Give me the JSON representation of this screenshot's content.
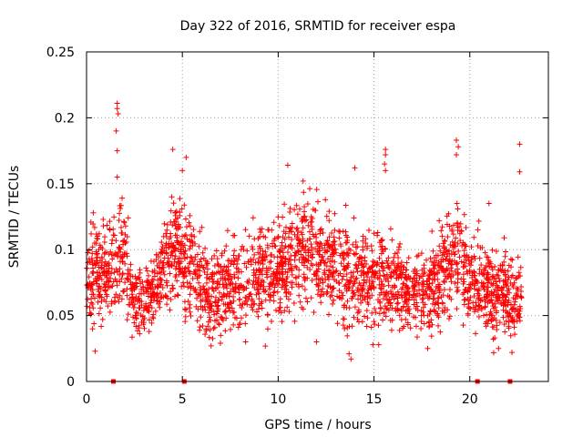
{
  "chart_data": {
    "type": "scatter",
    "title": "Day 322 of 2016, SRMTID for receiver espa",
    "xlabel": "GPS time / hours",
    "ylabel": "SRMTID / TECUs",
    "xlim": [
      0,
      24.1
    ],
    "ylim": [
      0,
      0.25
    ],
    "x_ticks": [
      0,
      5,
      10,
      15,
      20
    ],
    "x_tick_labels": [
      "0",
      "5",
      "10",
      "15",
      "20"
    ],
    "y_ticks": [
      0,
      0.05,
      0.1,
      0.15,
      0.2,
      0.25
    ],
    "y_tick_labels": [
      "0",
      "0.05",
      "0.1",
      "0.15",
      "0.2",
      "0.25"
    ],
    "grid": true,
    "marker": "+",
    "color": "#ff0000",
    "outliers": [
      {
        "x": 1.6,
        "y": 0.211
      },
      {
        "x": 1.6,
        "y": 0.207
      },
      {
        "x": 1.65,
        "y": 0.203
      },
      {
        "x": 1.55,
        "y": 0.19
      },
      {
        "x": 1.6,
        "y": 0.175
      },
      {
        "x": 1.6,
        "y": 0.155
      },
      {
        "x": 4.5,
        "y": 0.176
      },
      {
        "x": 5.2,
        "y": 0.17
      },
      {
        "x": 5.0,
        "y": 0.16
      },
      {
        "x": 4.45,
        "y": 0.14
      },
      {
        "x": 10.5,
        "y": 0.164
      },
      {
        "x": 11.3,
        "y": 0.152
      },
      {
        "x": 14.0,
        "y": 0.162
      },
      {
        "x": 15.6,
        "y": 0.176
      },
      {
        "x": 15.6,
        "y": 0.172
      },
      {
        "x": 15.55,
        "y": 0.165
      },
      {
        "x": 15.6,
        "y": 0.16
      },
      {
        "x": 19.3,
        "y": 0.183
      },
      {
        "x": 19.4,
        "y": 0.178
      },
      {
        "x": 19.3,
        "y": 0.172
      },
      {
        "x": 22.6,
        "y": 0.18
      },
      {
        "x": 22.6,
        "y": 0.159
      },
      {
        "x": 21.0,
        "y": 0.135
      },
      {
        "x": 0.45,
        "y": 0.023
      },
      {
        "x": 13.8,
        "y": 0.017
      },
      {
        "x": 13.7,
        "y": 0.021
      },
      {
        "x": 22.2,
        "y": 0.022
      },
      {
        "x": 17.8,
        "y": 0.025
      },
      {
        "x": 12.0,
        "y": 0.03
      },
      {
        "x": 6.5,
        "y": 0.027
      },
      {
        "x": 8.3,
        "y": 0.03
      },
      {
        "x": 21.5,
        "y": 0.025
      }
    ],
    "zero_markers": [
      1.4,
      5.1,
      20.4,
      22.1
    ],
    "bulk_profile": [
      {
        "x": 0,
        "center": 0.075,
        "spread": 0.022
      },
      {
        "x": 0.5,
        "center": 0.085,
        "spread": 0.025
      },
      {
        "x": 1.0,
        "center": 0.08,
        "spread": 0.025
      },
      {
        "x": 1.5,
        "center": 0.095,
        "spread": 0.025
      },
      {
        "x": 2.0,
        "center": 0.09,
        "spread": 0.025
      },
      {
        "x": 2.5,
        "center": 0.06,
        "spread": 0.015
      },
      {
        "x": 3.0,
        "center": 0.063,
        "spread": 0.016
      },
      {
        "x": 3.5,
        "center": 0.07,
        "spread": 0.018
      },
      {
        "x": 4.0,
        "center": 0.085,
        "spread": 0.022
      },
      {
        "x": 4.5,
        "center": 0.1,
        "spread": 0.025
      },
      {
        "x": 5.0,
        "center": 0.095,
        "spread": 0.025
      },
      {
        "x": 5.5,
        "center": 0.09,
        "spread": 0.025
      },
      {
        "x": 6.0,
        "center": 0.07,
        "spread": 0.022
      },
      {
        "x": 6.5,
        "center": 0.065,
        "spread": 0.022
      },
      {
        "x": 7.0,
        "center": 0.07,
        "spread": 0.022
      },
      {
        "x": 8.0,
        "center": 0.075,
        "spread": 0.022
      },
      {
        "x": 9.0,
        "center": 0.08,
        "spread": 0.022
      },
      {
        "x": 10.0,
        "center": 0.085,
        "spread": 0.025
      },
      {
        "x": 11.0,
        "center": 0.1,
        "spread": 0.025
      },
      {
        "x": 12.0,
        "center": 0.095,
        "spread": 0.025
      },
      {
        "x": 13.0,
        "center": 0.085,
        "spread": 0.025
      },
      {
        "x": 14.0,
        "center": 0.08,
        "spread": 0.025
      },
      {
        "x": 15.0,
        "center": 0.08,
        "spread": 0.025
      },
      {
        "x": 16.0,
        "center": 0.075,
        "spread": 0.022
      },
      {
        "x": 17.0,
        "center": 0.07,
        "spread": 0.02
      },
      {
        "x": 18.0,
        "center": 0.07,
        "spread": 0.02
      },
      {
        "x": 19.0,
        "center": 0.09,
        "spread": 0.025
      },
      {
        "x": 19.5,
        "center": 0.095,
        "spread": 0.025
      },
      {
        "x": 20.0,
        "center": 0.08,
        "spread": 0.022
      },
      {
        "x": 21.0,
        "center": 0.068,
        "spread": 0.02
      },
      {
        "x": 22.0,
        "center": 0.065,
        "spread": 0.02
      },
      {
        "x": 22.7,
        "center": 0.065,
        "spread": 0.02
      }
    ],
    "bulk_x_range": [
      0,
      22.7
    ],
    "bulk_point_count": 2600
  }
}
